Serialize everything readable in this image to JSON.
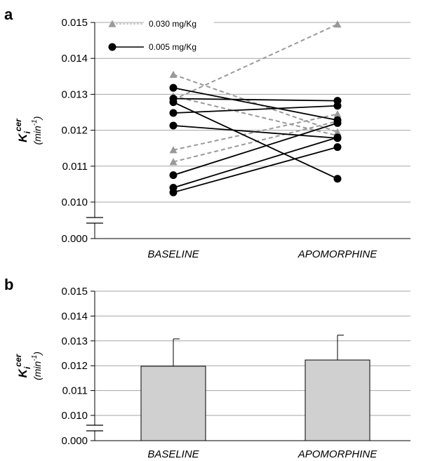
{
  "chart_data": [
    {
      "panel": "a",
      "type": "line",
      "categories": [
        "BASELINE",
        "APOMORPHINE"
      ],
      "y_label": {
        "main": "K",
        "sub": "i",
        "sup": "cer",
        "unit_base": "min",
        "unit_exp": "-1"
      },
      "y_ticks": [
        "0.000",
        "0.010",
        "0.011",
        "0.012",
        "0.013",
        "0.014",
        "0.015"
      ],
      "y_axis_break": [
        0.0,
        0.01
      ],
      "ylim": [
        0.01,
        0.015
      ],
      "grid": true,
      "legend": {
        "placement": "top-left",
        "entries": [
          {
            "label": "0.030 mg/Kg",
            "marker": "triangle",
            "color": "#999999",
            "dash": true
          },
          {
            "label": "0.005 mg/Kg",
            "marker": "circle",
            "color": "#000000",
            "dash": false
          }
        ]
      },
      "series": [
        {
          "group": 0,
          "values": [
            0.01355,
            0.01195
          ]
        },
        {
          "group": 0,
          "values": [
            0.01285,
            0.01495
          ]
        },
        {
          "group": 0,
          "values": [
            0.01145,
            0.01245
          ]
        },
        {
          "group": 0,
          "values": [
            0.01112,
            0.01225
          ]
        },
        {
          "group": 0,
          "values": [
            0.01295,
            0.01185
          ]
        },
        {
          "group": 1,
          "values": [
            0.01318,
            0.01228
          ]
        },
        {
          "group": 1,
          "values": [
            0.01288,
            0.01282
          ]
        },
        {
          "group": 1,
          "values": [
            0.01278,
            0.01065
          ]
        },
        {
          "group": 1,
          "values": [
            0.01248,
            0.01268
          ]
        },
        {
          "group": 1,
          "values": [
            0.01213,
            0.01178
          ]
        },
        {
          "group": 1,
          "values": [
            0.01075,
            0.0122
          ]
        },
        {
          "group": 1,
          "values": [
            0.0104,
            0.0118
          ]
        },
        {
          "group": 1,
          "values": [
            0.01027,
            0.01153
          ]
        }
      ]
    },
    {
      "panel": "b",
      "type": "bar",
      "categories": [
        "BASELINE",
        "APOMORPHINE"
      ],
      "values": [
        0.01198,
        0.01223
      ],
      "errors": [
        0.0011,
        0.001
      ],
      "bar_color": "#d0d0d0",
      "y_label": {
        "main": "K",
        "sub": "i",
        "sup": "cer",
        "unit_base": "min",
        "unit_exp": "-1"
      },
      "y_ticks": [
        "0.000",
        "0.010",
        "0.011",
        "0.012",
        "0.013",
        "0.014",
        "0.015"
      ],
      "y_axis_break": [
        0.0,
        0.01
      ],
      "ylim": [
        0.01,
        0.015
      ],
      "grid": true
    }
  ]
}
